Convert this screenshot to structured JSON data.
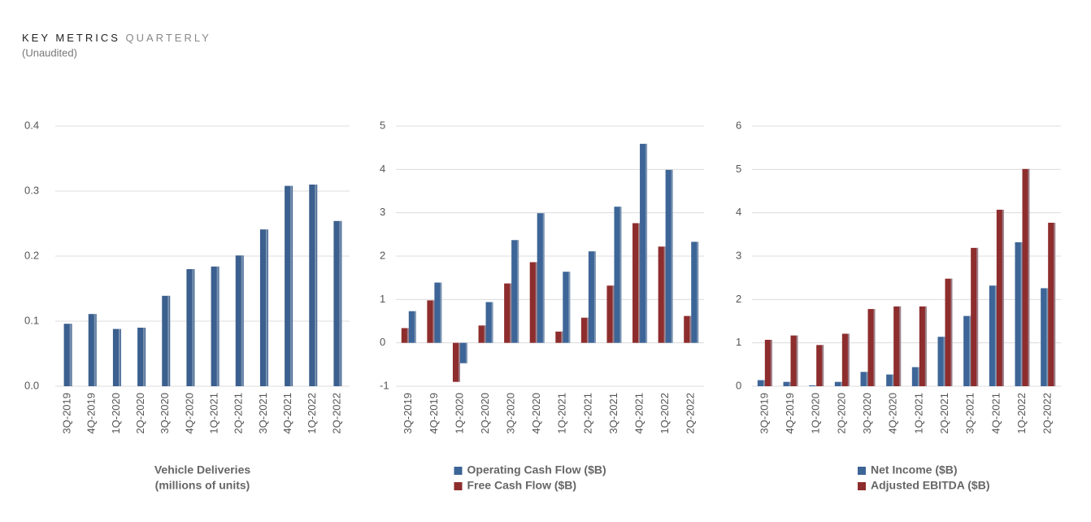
{
  "header": {
    "title_bold": "KEY METRICS",
    "title_light": "QUARTERLY",
    "subtitle": "(Unaudited)"
  },
  "chart_data": [
    {
      "type": "bar",
      "xlabel": [
        "Vehicle Deliveries",
        "(millions of units)"
      ],
      "categories": [
        "3Q-2019",
        "4Q-2019",
        "1Q-2020",
        "2Q-2020",
        "3Q-2020",
        "4Q-2020",
        "1Q-2021",
        "2Q-2021",
        "3Q-2021",
        "4Q-2021",
        "1Q-2022",
        "2Q-2022"
      ],
      "values": [
        0.096,
        0.111,
        0.088,
        0.09,
        0.139,
        0.18,
        0.184,
        0.201,
        0.241,
        0.308,
        0.31,
        0.254
      ],
      "color": "#3b5f8e",
      "ylim": [
        0,
        0.4
      ],
      "yticks": [
        {
          "value": 0,
          "label": "0.0"
        },
        0.1,
        0.2,
        0.3,
        0.4
      ],
      "grid": true
    },
    {
      "type": "bar",
      "categories": [
        "3Q-2019",
        "4Q-2019",
        "1Q-2020",
        "2Q-2020",
        "3Q-2020",
        "4Q-2020",
        "1Q-2021",
        "2Q-2021",
        "3Q-2021",
        "4Q-2021",
        "1Q-2022",
        "2Q-2022"
      ],
      "series": [
        {
          "name": "Operating Cash Flow ($B)",
          "color": "#3d6597",
          "values": [
            0.73,
            1.39,
            -0.47,
            0.94,
            2.37,
            2.99,
            1.64,
            2.11,
            3.14,
            4.59,
            3.99,
            2.33
          ]
        },
        {
          "name": "Free Cash Flow ($B)",
          "color": "#8e2d2d",
          "values": [
            0.34,
            0.98,
            -0.9,
            0.4,
            1.37,
            1.86,
            0.26,
            0.58,
            1.32,
            2.76,
            2.22,
            0.62
          ]
        }
      ],
      "ylim": [
        -1,
        5
      ],
      "yticks": [
        -1,
        0,
        1,
        2,
        3,
        4,
        5
      ],
      "grid": true
    },
    {
      "type": "bar",
      "categories": [
        "3Q-2019",
        "4Q-2019",
        "1Q-2020",
        "2Q-2020",
        "3Q-2020",
        "4Q-2020",
        "1Q-2021",
        "2Q-2021",
        "3Q-2021",
        "4Q-2021",
        "1Q-2022",
        "2Q-2022"
      ],
      "series": [
        {
          "name": "Net Income ($B)",
          "color": "#3d6597",
          "values": [
            0.14,
            0.1,
            0.02,
            0.1,
            0.33,
            0.27,
            0.44,
            1.14,
            1.62,
            2.32,
            3.32,
            2.26
          ]
        },
        {
          "name": "Adjusted EBITDA ($B)",
          "color": "#8e2d2d",
          "values": [
            1.07,
            1.17,
            0.95,
            1.21,
            1.78,
            1.84,
            1.84,
            2.48,
            3.19,
            4.07,
            5.01,
            3.77
          ]
        }
      ],
      "ylim": [
        0,
        6
      ],
      "yticks": [
        0,
        1,
        2,
        3,
        4,
        5,
        6
      ],
      "grid": true
    }
  ]
}
